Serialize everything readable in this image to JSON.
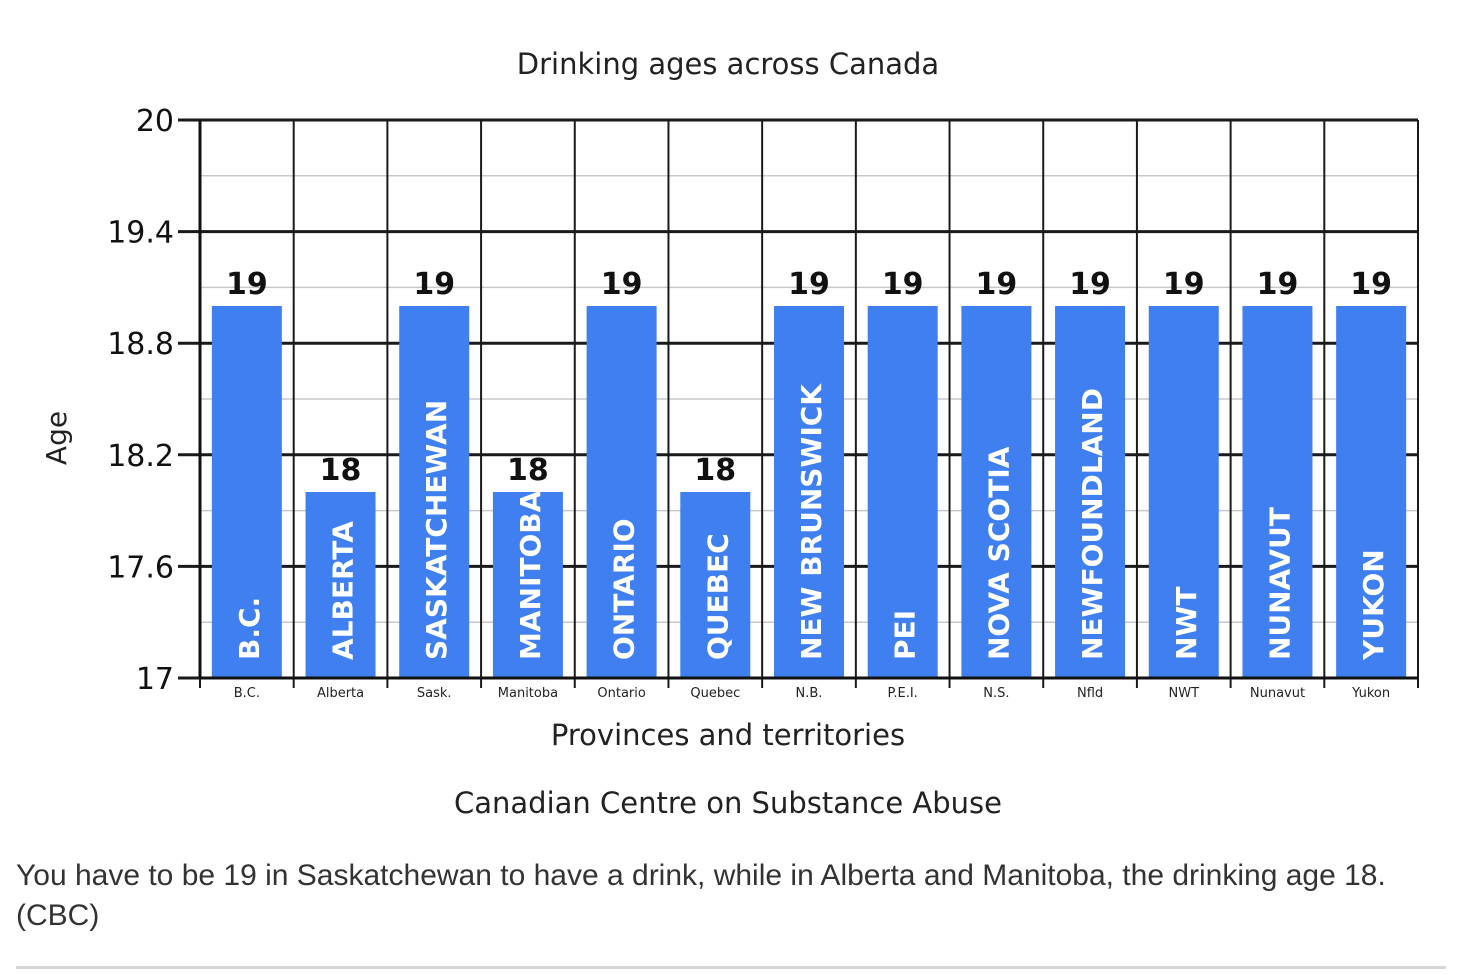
{
  "chart_data": {
    "type": "bar",
    "title": "Drinking ages across Canada",
    "xlabel": "Provinces and territories",
    "ylabel": "Age",
    "source": "Canadian Centre on Substance Abuse",
    "ylim": [
      17,
      20
    ],
    "yticks": [
      "20",
      "19.4",
      "18.8",
      "18.2",
      "17.6",
      "17"
    ],
    "grid": true,
    "categories": [
      "B.C.",
      "Alberta",
      "Sask.",
      "Manitoba",
      "Ontario",
      "Quebec",
      "N.B.",
      "P.E.I.",
      "N.S.",
      "Nfld",
      "NWT",
      "Nunavut",
      "Yukon"
    ],
    "bar_labels": [
      "B.C.",
      "ALBERTA",
      "SASKATCHEWAN",
      "MANITOBA",
      "ONTARIO",
      "QUEBEC",
      "NEW BRUNSWICK",
      "PEI",
      "NOVA SCOTIA",
      "NEWFOUNDLAND",
      "NWT",
      "NUNAVUT",
      "YUKON"
    ],
    "values": [
      19,
      18,
      19,
      18,
      19,
      18,
      19,
      19,
      19,
      19,
      19,
      19,
      19
    ],
    "bar_color": "#3f7ff0"
  },
  "caption": "You have to be 19 in Saskatchewan to have a drink, while in Alberta and Manitoba, the drinking age 18. (CBC)"
}
